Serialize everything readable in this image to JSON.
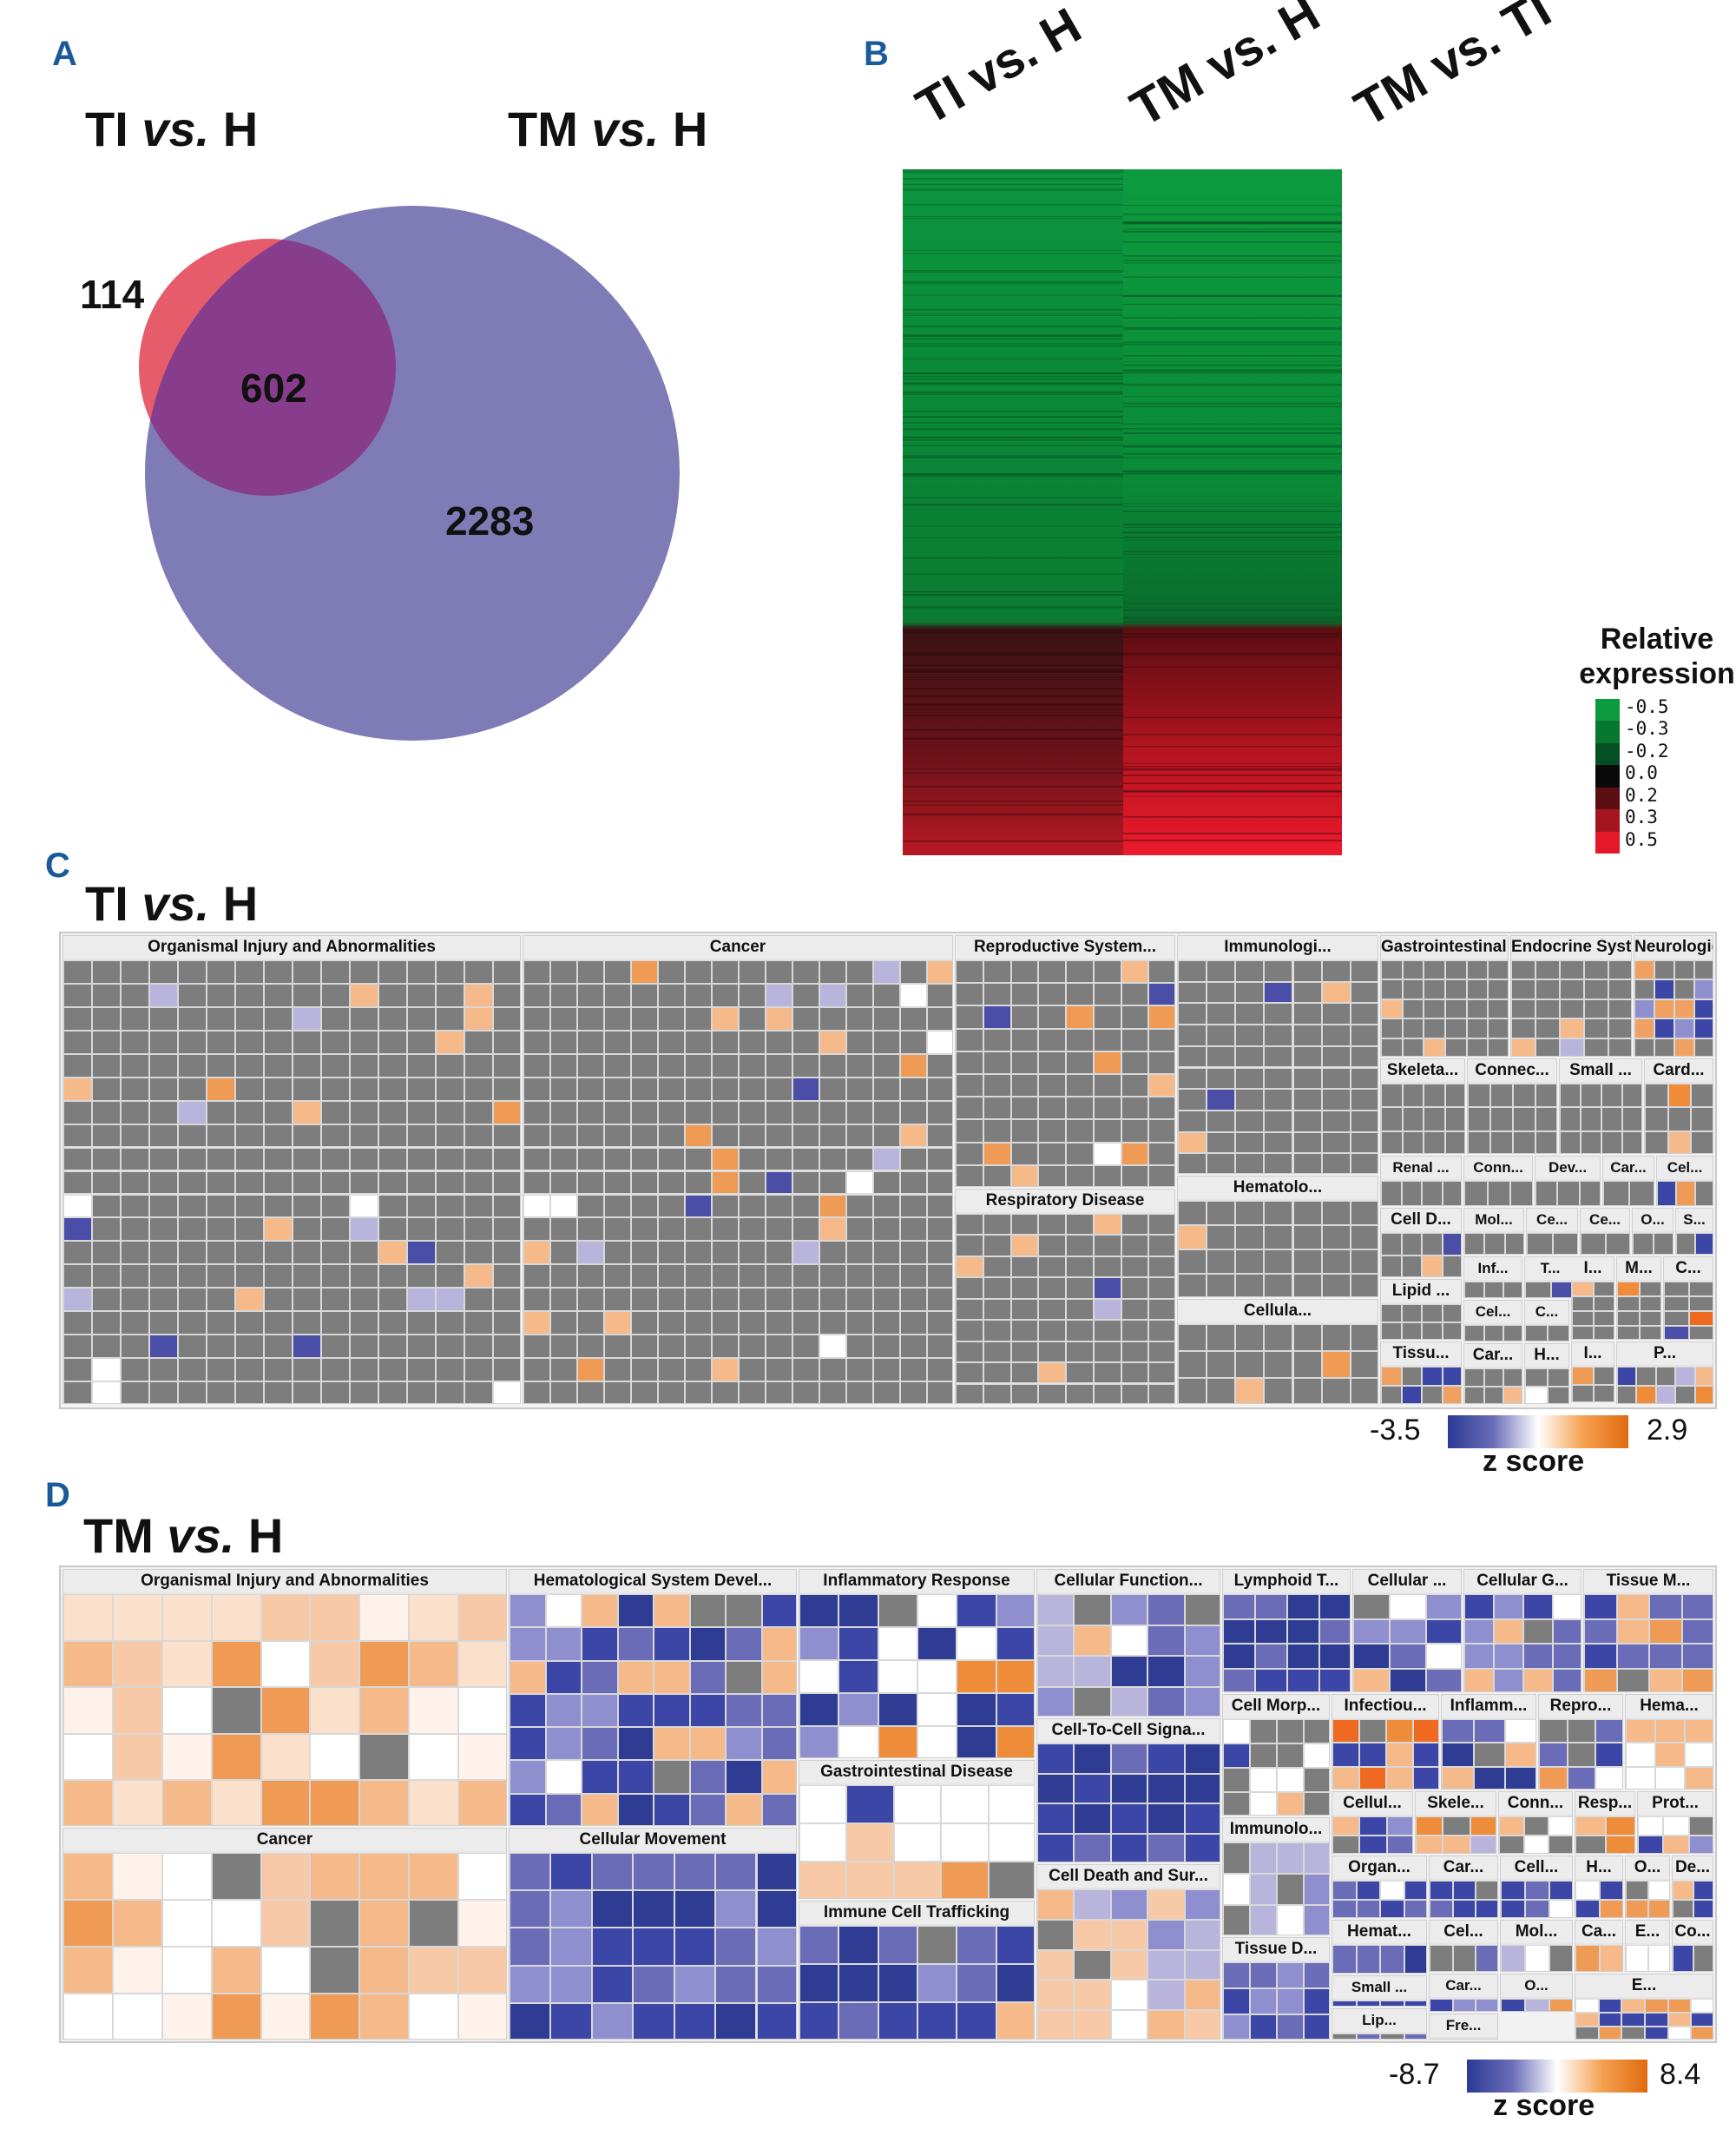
{
  "panels": {
    "a": {
      "letter": "A",
      "title_left_pre": "TI ",
      "title_left_it": "vs.",
      "title_left_post": " H",
      "title_right_pre": "TM ",
      "title_right_it": "vs.",
      "title_right_post": " H",
      "venn": {
        "only_ti": "114",
        "overlap": "602",
        "only_tm": "2283",
        "color_ti": "#e65c6a",
        "color_tm": "#7f7bb7",
        "color_overlap": "#873d8c"
      }
    },
    "b": {
      "letter": "B",
      "columns": [
        "TI vs. H",
        "TM vs. H",
        "TM vs. TI"
      ],
      "legend_title_1": "Relative",
      "legend_title_2": "expression",
      "legend_ticks": [
        "-0.5",
        "-0.3",
        "-0.2",
        "0.0",
        "0.2",
        "0.3",
        "0.5"
      ],
      "legend_colors": [
        "#0d9a3e",
        "#08772f",
        "#055022",
        "#0a0a0a",
        "#5a0f12",
        "#a51520",
        "#e5182a"
      ]
    },
    "c": {
      "letter": "C",
      "title_pre": "TI ",
      "title_it": "vs.",
      "title_post": " H",
      "scale_min": "-3.5",
      "scale_max": "2.9",
      "scale_label": "z score",
      "categories": [
        "Organismal Injury and Abnormalities",
        "Cancer",
        "Reproductive System...",
        "Respiratory Disease",
        "Immunologi...",
        "Hematolo...",
        "Cellula...",
        "Gastrointestinal Dise...",
        "Endocrine System ...",
        "Neurological Disease",
        "Skeleta...",
        "Connec...",
        "Small ...",
        "Card...",
        "Renal ...",
        "Conn...",
        "Dev...",
        "Car...",
        "Cel...",
        "Cell D...",
        "Mol...",
        "Ce...",
        "Ce...",
        "O...",
        "S...",
        "Inf...",
        "T...",
        "Lipid ...",
        "Cel...",
        "C...",
        "I...",
        "M...",
        "C...",
        "I...",
        "Tissu...",
        "Car...",
        "H...",
        "P..."
      ]
    },
    "d": {
      "letter": "D",
      "title_pre": "TM ",
      "title_it": "vs.",
      "title_post": " H",
      "scale_min": "-8.7",
      "scale_max": "8.4",
      "scale_label": "z score",
      "categories": [
        "Organismal Injury and Abnormalities",
        "Hematological System Devel...",
        "Inflammatory Response",
        "Cellular Function...",
        "Lymphoid T...",
        "Cellular ...",
        "Cellular G...",
        "Tissue M...",
        "Cancer",
        "Cellular Movement",
        "Gastrointestinal Disease",
        "Cell-To-Cell Signa...",
        "Cell Morp...",
        "Infectiou...",
        "Inflamm...",
        "Repro...",
        "Hema...",
        "Immunolo...",
        "Cellul...",
        "Skele...",
        "Conn...",
        "Resp...",
        "Prot...",
        "Immune Cell Trafficking",
        "Cell Death and Sur...",
        "Organ...",
        "Car...",
        "Cell...",
        "H...",
        "O...",
        "De...",
        "Tissue D...",
        "Hemat...",
        "Cel...",
        "Mol...",
        "Ca...",
        "E...",
        "Co...",
        "Small ...",
        "Lip...",
        "Car...",
        "O...",
        "Fre...",
        "E..."
      ]
    }
  }
}
